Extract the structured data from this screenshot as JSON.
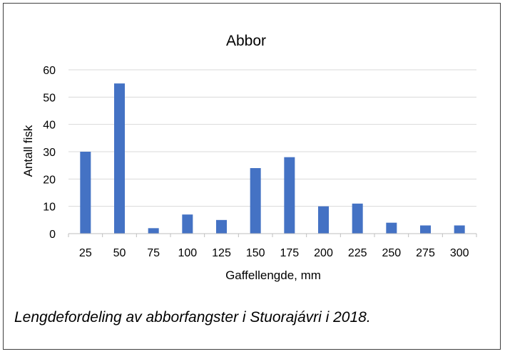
{
  "chart_data": {
    "type": "bar",
    "title": "Abbor",
    "xlabel": "Gaffellengde, mm",
    "ylabel": "Antall fisk",
    "categories": [
      "25",
      "50",
      "75",
      "100",
      "125",
      "150",
      "175",
      "200",
      "225",
      "250",
      "275",
      "300"
    ],
    "values": [
      30,
      55,
      2,
      7,
      5,
      24,
      28,
      10,
      11,
      4,
      3,
      3
    ],
    "ylim": [
      0,
      60
    ],
    "yticks": [
      "0",
      "10",
      "20",
      "30",
      "40",
      "50",
      "60"
    ],
    "grid": true,
    "legend": "none",
    "bar_color": "#4472C4"
  },
  "caption": "Lengdefordeling av abborfangster i Stuorajávri i 2018."
}
